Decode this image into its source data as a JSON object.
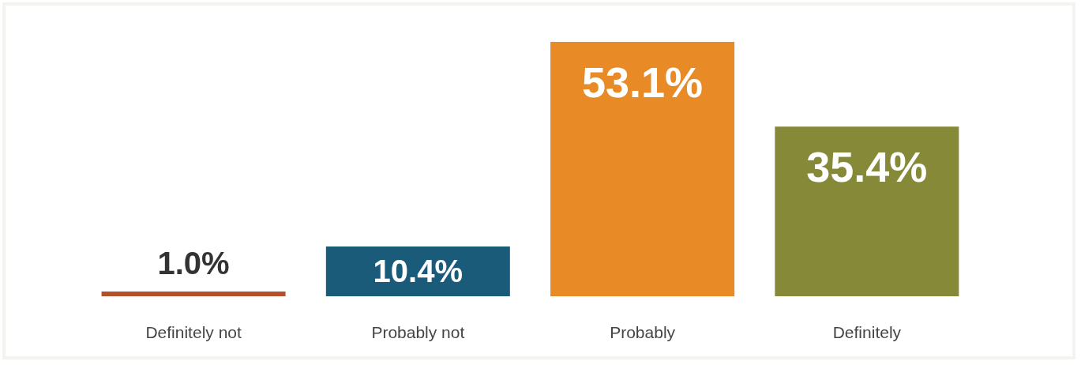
{
  "chart_data": {
    "type": "bar",
    "categories": [
      "Definitely not",
      "Probably not",
      "Probably",
      "Definitely"
    ],
    "values": [
      1.0,
      10.4,
      53.1,
      35.4
    ],
    "colors": [
      "#b5502a",
      "#1a5b7a",
      "#e88a25",
      "#868a38"
    ],
    "value_labels": [
      "1.0%",
      "10.4%",
      "53.1%",
      "35.4%"
    ]
  }
}
